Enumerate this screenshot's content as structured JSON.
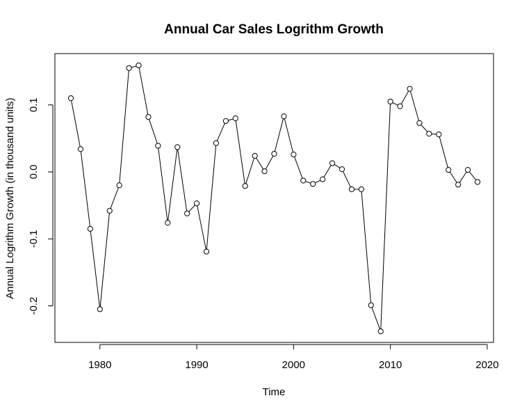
{
  "chart_data": {
    "type": "line",
    "title": "Annual Car Sales Logrithm Growth",
    "xlabel": "Time",
    "ylabel": "Annual Logrithm Growth (in thousand units)",
    "xlim": [
      1977,
      2019
    ],
    "ylim": [
      -0.24,
      0.16
    ],
    "x_ticks": [
      1980,
      1990,
      2000,
      2010,
      2020
    ],
    "x_tick_labels": [
      "1980",
      "1990",
      "2000",
      "2010",
      "2020"
    ],
    "y_ticks": [
      -0.2,
      -0.1,
      0.0,
      0.1
    ],
    "y_tick_labels": [
      "-0.2",
      "-0.1",
      "0.0",
      "0.1"
    ],
    "grid": false,
    "marker": "open-circle",
    "line_color": "#000000",
    "series": [
      {
        "x": [
          1977,
          1978,
          1979,
          1980,
          1981,
          1982,
          1983,
          1984,
          1985,
          1986,
          1987,
          1988,
          1989,
          1990,
          1991,
          1992,
          1993,
          1994,
          1995,
          1996,
          1997,
          1998,
          1999,
          2000,
          2001,
          2002,
          2003,
          2004,
          2005,
          2006,
          2007,
          2008,
          2009,
          2010,
          2011,
          2012,
          2013,
          2014,
          2015,
          2016,
          2017,
          2018,
          2019
        ],
        "values": [
          0.11,
          0.034,
          -0.085,
          -0.205,
          -0.058,
          -0.02,
          0.155,
          0.159,
          0.082,
          0.039,
          -0.076,
          0.037,
          -0.062,
          -0.047,
          -0.119,
          0.043,
          0.076,
          0.08,
          -0.021,
          0.024,
          0.001,
          0.027,
          0.083,
          0.026,
          -0.013,
          -0.018,
          -0.011,
          0.013,
          0.004,
          -0.026,
          -0.026,
          -0.199,
          -0.238,
          0.105,
          0.098,
          0.124,
          0.073,
          0.057,
          0.056,
          0.003,
          -0.019,
          0.003,
          -0.015
        ]
      }
    ]
  }
}
